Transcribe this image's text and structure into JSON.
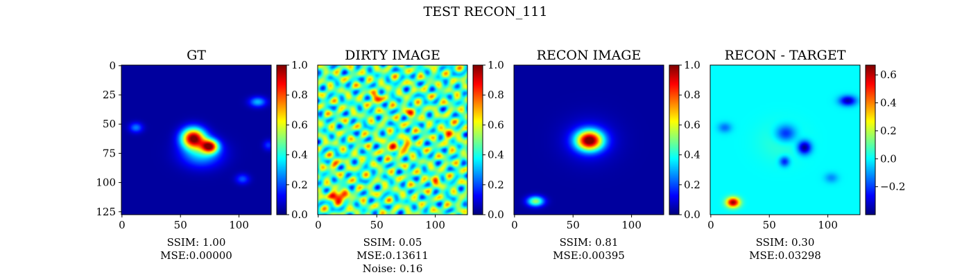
{
  "suptitle": "TEST RECON_111",
  "chart_data": [
    {
      "type": "heatmap",
      "title": "GT",
      "colormap": "jet",
      "x_ticks": [
        "0",
        "50",
        "100"
      ],
      "y_ticks": [
        "0",
        "25",
        "50",
        "75",
        "100",
        "125"
      ],
      "image_size": [
        128,
        128
      ],
      "colorbar": {
        "range": [
          0.0,
          1.0
        ],
        "ticks": [
          "0.0",
          "0.2",
          "0.4",
          "0.6",
          "0.8",
          "1.0"
        ]
      },
      "metrics": [
        "SSIM: 1.00",
        "MSE:0.00000"
      ],
      "background_level": 0.03,
      "blobs": [
        {
          "x": 61,
          "y": 62,
          "sx": 7,
          "sy": 6,
          "peak": 0.95
        },
        {
          "x": 75,
          "y": 69,
          "sx": 5,
          "sy": 4,
          "peak": 0.8
        },
        {
          "x": 68,
          "y": 75,
          "sx": 12,
          "sy": 8,
          "peak": 0.3
        },
        {
          "x": 116,
          "y": 31,
          "sx": 5,
          "sy": 3,
          "peak": 0.28
        },
        {
          "x": 12,
          "y": 53,
          "sx": 4,
          "sy": 3,
          "peak": 0.22
        },
        {
          "x": 103,
          "y": 97,
          "sx": 4,
          "sy": 3,
          "peak": 0.18
        },
        {
          "x": 125,
          "y": 68,
          "sx": 3,
          "sy": 3,
          "peak": 0.15
        }
      ]
    },
    {
      "type": "heatmap",
      "title": "DIRTY IMAGE",
      "colormap": "jet",
      "x_ticks": [
        "0",
        "50",
        "100"
      ],
      "image_size": [
        128,
        128
      ],
      "colorbar": {
        "range": [
          0.0,
          1.0
        ],
        "ticks": [
          "0.0",
          "0.2",
          "0.4",
          "0.6",
          "0.8",
          "1.0"
        ]
      },
      "metrics": [
        "SSIM: 0.05",
        "MSE:0.13611",
        "Noise: 0.16"
      ],
      "background_level": 0.45,
      "noise_level": 0.16,
      "blobs": [
        {
          "x": 17,
          "y": 112,
          "sx": 5,
          "sy": 3,
          "peak": 0.55
        },
        {
          "x": 50,
          "y": 28,
          "sx": 3,
          "sy": 3,
          "peak": 0.35
        },
        {
          "x": 62,
          "y": 70,
          "sx": 3,
          "sy": 4,
          "peak": 0.3
        },
        {
          "x": 74,
          "y": 69,
          "sx": 3,
          "sy": 4,
          "peak": 0.3
        },
        {
          "x": 79,
          "y": 40,
          "sx": 4,
          "sy": 3,
          "peak": 0.25
        },
        {
          "x": 112,
          "y": 58,
          "sx": 3,
          "sy": 4,
          "peak": 0.3
        },
        {
          "x": 100,
          "y": 98,
          "sx": 3,
          "sy": 3,
          "peak": 0.25
        },
        {
          "x": 13,
          "y": 84,
          "sx": 3,
          "sy": 3,
          "peak": 0.2
        }
      ]
    },
    {
      "type": "heatmap",
      "title": "RECON IMAGE",
      "colormap": "jet",
      "x_ticks": [
        "0",
        "50",
        "100"
      ],
      "image_size": [
        128,
        128
      ],
      "colorbar": {
        "range": [
          0.0,
          1.0
        ],
        "ticks": [
          "0.0",
          "0.2",
          "0.4",
          "0.6",
          "0.8",
          "1.0"
        ]
      },
      "metrics": [
        "SSIM: 0.81",
        "MSE:0.00395"
      ],
      "background_level": 0.03,
      "blobs": [
        {
          "x": 64,
          "y": 64,
          "sx": 8,
          "sy": 6,
          "peak": 0.95
        },
        {
          "x": 64,
          "y": 64,
          "sx": 16,
          "sy": 13,
          "peak": 0.1
        },
        {
          "x": 18,
          "y": 116,
          "sx": 5,
          "sy": 3,
          "peak": 0.5
        }
      ]
    },
    {
      "type": "heatmap",
      "title": "RECON - TARGET",
      "colormap": "jet",
      "x_ticks": [
        "0",
        "50",
        "100"
      ],
      "image_size": [
        128,
        128
      ],
      "colorbar": {
        "range": [
          -0.4,
          0.67
        ],
        "ticks": [
          "−0.2",
          "0.0",
          "0.2",
          "0.4",
          "0.6"
        ],
        "tick_values": [
          -0.2,
          0.0,
          0.2,
          0.4,
          0.6
        ]
      },
      "metrics": [
        "SSIM: 0.30",
        "MSE:0.03298"
      ],
      "background_level": 0.0,
      "blobs": [
        {
          "x": 19,
          "y": 117,
          "sx": 4,
          "sy": 3,
          "peak": 0.65
        },
        {
          "x": 80,
          "y": 70,
          "sx": 4,
          "sy": 4,
          "peak": -0.4
        },
        {
          "x": 117,
          "y": 30,
          "sx": 5,
          "sy": 3,
          "peak": -0.35
        },
        {
          "x": 64,
          "y": 58,
          "sx": 6,
          "sy": 5,
          "peak": -0.25
        },
        {
          "x": 63,
          "y": 82,
          "sx": 3,
          "sy": 3,
          "peak": -0.25
        },
        {
          "x": 12,
          "y": 53,
          "sx": 4,
          "sy": 3,
          "peak": -0.15
        },
        {
          "x": 103,
          "y": 96,
          "sx": 4,
          "sy": 3,
          "peak": -0.12
        },
        {
          "x": 60,
          "y": 65,
          "sx": 14,
          "sy": 12,
          "peak": 0.05
        }
      ]
    }
  ]
}
